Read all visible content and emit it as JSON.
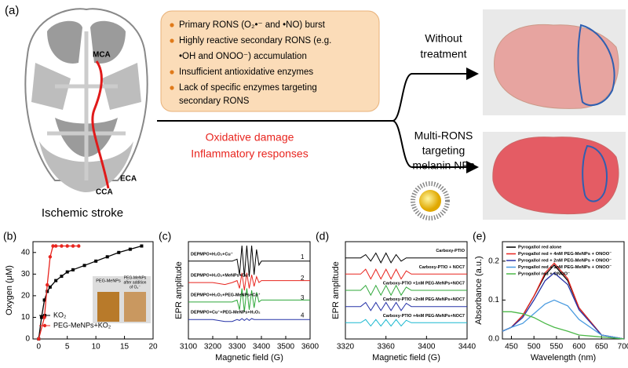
{
  "panel_a": {
    "label": "(a)",
    "brain_labels": [
      "MCA",
      "ECA",
      "CCA"
    ],
    "caption": "Ischemic stroke",
    "box_lines": [
      "Primary RONS (O₂•⁻ and •NO) burst",
      "Highly reactive secondary RONS  (e.g.",
      "•OH and ONOO⁻) accumulation",
      "Insufficient antioxidative enzymes",
      "Lack of specific enzymes targeting",
      "secondary RONS"
    ],
    "effects": [
      "Oxidative damage",
      "Inflammatory responses"
    ],
    "without_lines": [
      "Without",
      "treatment"
    ],
    "with_lines": [
      "Multi-RONS",
      "targeting",
      "melanin NPs"
    ]
  },
  "inset_b": [
    "PEG-MeNPs",
    "PEG-MeNPs",
    "after addition",
    "of O₂⁻"
  ],
  "chart_data": [
    {
      "type": "line",
      "label": "(b)",
      "y_label": "Oxygen (μM)",
      "xlim": [
        -1,
        20
      ],
      "ylim": [
        0,
        45
      ],
      "xticks": [
        0,
        5,
        10,
        15,
        20
      ],
      "yticks": [
        0,
        10,
        20,
        30,
        40
      ],
      "legend": "lower right",
      "series": [
        {
          "name": "KO₂",
          "color": "#000000",
          "marker": "square",
          "x": [
            0,
            0.5,
            1,
            1.5,
            2,
            3,
            4,
            5,
            6,
            8,
            10,
            12,
            14,
            16,
            18
          ],
          "values": [
            0,
            10,
            18,
            22,
            24,
            27,
            29,
            31,
            32,
            34,
            36,
            38,
            40,
            41.5,
            43
          ]
        },
        {
          "name": "PEG-MeNPs+KO₂",
          "color": "#e8251f",
          "marker": "circle",
          "x": [
            0,
            1,
            1.5,
            2,
            2.5,
            3,
            4,
            5,
            6,
            7
          ],
          "values": [
            0,
            10,
            25,
            38,
            43,
            43,
            43,
            43,
            43,
            43
          ]
        }
      ]
    },
    {
      "type": "line",
      "label": "(c)",
      "x_label": "Magnetic field (G)",
      "y_label": "EPR amplitude",
      "xlim": [
        3100,
        3600
      ],
      "ylim": [
        0,
        5
      ],
      "xticks": [
        3100,
        3200,
        3300,
        3400,
        3500,
        3600
      ],
      "legend": "inline",
      "trace_numbers": [
        "1",
        "2",
        "3",
        "4"
      ],
      "x": [
        3100,
        3200,
        3250,
        3280,
        3300,
        3310,
        3320,
        3330,
        3340,
        3350,
        3360,
        3370,
        3380,
        3390,
        3400,
        3450,
        3500,
        3550,
        3600
      ],
      "series": [
        {
          "name": "DEPMPO+H₂O₂+Cu⁺",
          "color": "#000000",
          "values": [
            4,
            4,
            4,
            4,
            4.1,
            3.3,
            4.8,
            3.2,
            4.8,
            3.2,
            4.8,
            3.3,
            4.6,
            3.8,
            4,
            4,
            4,
            4,
            4
          ]
        },
        {
          "name": "DEPMPO+H₂O₂+MeNPs+Cu⁺",
          "color": "#e8251f",
          "values": [
            2.9,
            2.9,
            2.8,
            2.9,
            3,
            2.6,
            3.4,
            2.5,
            3.4,
            2.6,
            3.3,
            2.7,
            3.2,
            2.9,
            3,
            3,
            3,
            3,
            3
          ]
        },
        {
          "name": "DEPMPO+H₂O₂+PEG-MeNPs+Cu⁺",
          "color": "#2fa83a",
          "values": [
            1.9,
            1.9,
            1.9,
            1.9,
            2,
            1.5,
            2.6,
            1.4,
            2.6,
            1.5,
            2.5,
            1.6,
            2.4,
            1.9,
            2,
            2,
            2,
            2,
            2
          ]
        },
        {
          "name": "DEPMPO+Cu⁺+PEG-MeNPs+H₂O₂",
          "color": "#2733a8",
          "values": [
            1,
            1,
            0.9,
            0.9,
            1,
            0.95,
            1.05,
            0.95,
            1.05,
            0.95,
            1.05,
            1,
            1,
            1,
            1,
            1,
            1,
            1,
            1
          ]
        }
      ]
    },
    {
      "type": "line",
      "label": "(d)",
      "x_label": "Magnetic field (G)",
      "y_label": "EPR amplitude",
      "xlim": [
        3320,
        3440
      ],
      "ylim": [
        0,
        6
      ],
      "xticks": [
        3320,
        3360,
        3400,
        3440
      ],
      "legend": "inline",
      "x": [
        3320,
        3335,
        3340,
        3345,
        3350,
        3355,
        3360,
        3365,
        3370,
        3375,
        3380,
        3385,
        3400,
        3440
      ],
      "series": [
        {
          "name": "Carboxy-PTIO",
          "color": "#000000",
          "values": [
            5,
            5,
            5.2,
            4.8,
            5.3,
            4.7,
            5.3,
            4.7,
            5.2,
            4.8,
            5,
            5,
            5,
            5
          ]
        },
        {
          "name": "Carboxy-PTIO + NOC7",
          "color": "#e8251f",
          "values": [
            4,
            4,
            4.3,
            3.7,
            4.3,
            3.7,
            4.3,
            3.7,
            4.3,
            3.7,
            4.2,
            4,
            4,
            4
          ]
        },
        {
          "name": "Carboxy-PTIO +1nM PEG-MeNPs+NOC7",
          "color": "#2fa83a",
          "values": [
            3,
            3,
            3.3,
            2.7,
            3.3,
            2.7,
            3.3,
            2.7,
            3.3,
            2.7,
            3.2,
            3,
            3,
            3
          ]
        },
        {
          "name": "Carboxy-PTIO +2nM PEG-MeNPs+NOC7",
          "color": "#2733a8",
          "values": [
            2,
            2,
            2.25,
            1.75,
            2.25,
            1.75,
            2.25,
            1.75,
            2.25,
            1.75,
            2.2,
            2,
            2,
            2
          ]
        },
        {
          "name": "Carboxy-PTIO +4nM PEG-MeNPs+NOC7",
          "color": "#19b8d0",
          "values": [
            1,
            1,
            1.2,
            0.8,
            1.2,
            0.8,
            1.2,
            0.8,
            1.2,
            0.8,
            1.15,
            1,
            1,
            1
          ]
        }
      ]
    },
    {
      "type": "line",
      "label": "(e)",
      "x_label": "Wavelength (nm)",
      "y_label": "Absorbance (a.u.)",
      "xlim": [
        430,
        700
      ],
      "ylim": [
        0,
        0.25
      ],
      "xticks": [
        450,
        500,
        550,
        600,
        650,
        700
      ],
      "yticks": [
        {
          "value": 0,
          "label": "0.0"
        },
        0.1,
        0.2
      ],
      "legend": "upper left",
      "x": [
        430,
        450,
        475,
        500,
        525,
        545,
        575,
        600,
        650,
        700
      ],
      "series": [
        {
          "name": "Pyrogallol red alone",
          "color": "#000000",
          "values": [
            0.02,
            0.03,
            0.06,
            0.11,
            0.165,
            0.19,
            0.15,
            0.08,
            0.01,
            0
          ]
        },
        {
          "name": "Pyrogallol red + 4nM PEG-MeNPs + ONOO⁻",
          "color": "#e8251f",
          "values": [
            0.02,
            0.03,
            0.06,
            0.11,
            0.17,
            0.195,
            0.155,
            0.08,
            0.01,
            0
          ]
        },
        {
          "name": "Pyrogallol red + 2nM PEG-MeNPs + ONOO⁻",
          "color": "#2733a8",
          "values": [
            0.02,
            0.03,
            0.055,
            0.1,
            0.15,
            0.17,
            0.14,
            0.075,
            0.01,
            0
          ]
        },
        {
          "name": "Pyrogallol red + 1nM PEG-MeNPs + ONOO⁻",
          "color": "#4a9be0",
          "values": [
            0.02,
            0.03,
            0.04,
            0.065,
            0.09,
            0.1,
            0.085,
            0.05,
            0.01,
            0
          ]
        },
        {
          "name": "Pyrogallol red + ONOO⁻",
          "color": "#4cb848",
          "values": [
            0.07,
            0.07,
            0.065,
            0.055,
            0.04,
            0.03,
            0.02,
            0.01,
            0.005,
            0
          ]
        }
      ]
    }
  ]
}
